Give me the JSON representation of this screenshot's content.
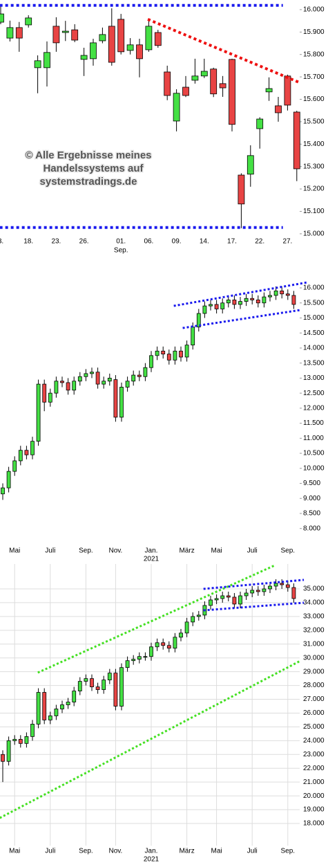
{
  "chart_data": [
    {
      "type": "candlestick",
      "categories": [
        "3.",
        null,
        null,
        "18.",
        null,
        null,
        "23.",
        null,
        null,
        "26.",
        null,
        null,
        null,
        "01.",
        null,
        null,
        "06.",
        null,
        null,
        "09.",
        null,
        null,
        "14.",
        null,
        null,
        "17.",
        null,
        null,
        "22.",
        null,
        null,
        "27.",
        null
      ],
      "year_row": [
        null,
        null,
        null,
        null,
        null,
        null,
        null,
        null,
        null,
        null,
        null,
        null,
        null,
        "Sep.",
        null,
        null,
        null,
        null,
        null,
        null,
        null,
        null,
        null,
        null,
        null,
        null,
        null,
        null,
        null,
        null,
        null,
        null,
        null
      ],
      "open": [
        15944,
        15873,
        15920,
        15932,
        15741,
        15741,
        15926,
        15898,
        15910,
        15778,
        15781,
        15861,
        15926,
        15957,
        15818,
        15843,
        15821,
        15898,
        15722,
        15503,
        15654,
        15685,
        15704,
        15735,
        15670,
        15778,
        15262,
        15266,
        15469,
        15633,
        15571,
        15704,
        15543
      ],
      "high": [
        16019,
        15951,
        15945,
        15975,
        15796,
        15858,
        15966,
        15950,
        15935,
        15830,
        15870,
        15920,
        16006,
        15981,
        15873,
        15870,
        15951,
        15910,
        15750,
        15645,
        15704,
        15781,
        15781,
        15741,
        15704,
        15781,
        15270,
        15395,
        15520,
        15698,
        15611,
        15710,
        15549
      ],
      "low": [
        15935,
        15858,
        15812,
        15920,
        15627,
        15657,
        15812,
        15860,
        15855,
        15704,
        15750,
        15850,
        15750,
        15800,
        15800,
        15698,
        15812,
        15830,
        15596,
        15457,
        15610,
        15670,
        15695,
        15610,
        15611,
        15457,
        15025,
        15210,
        15380,
        15593,
        15500,
        15550,
        15235
      ],
      "close": [
        15981,
        15920,
        15873,
        15963,
        15772,
        15809,
        15852,
        15904,
        15864,
        15796,
        15852,
        15889,
        15765,
        15812,
        15843,
        15781,
        15926,
        15840,
        15617,
        15627,
        15617,
        15704,
        15725,
        15624,
        15651,
        15488,
        15133,
        15349,
        15512,
        15648,
        15540,
        15574,
        15290
      ],
      "up_color": "#44e044",
      "down_color": "#e84444",
      "ylim": [
        14978,
        16043
      ],
      "yticks": [
        {
          "value": 15000,
          "label": "15.000"
        },
        {
          "value": 15100,
          "label": "15.100"
        },
        {
          "value": 15200,
          "label": "15.200"
        },
        {
          "value": 15300,
          "label": "15.300"
        },
        {
          "value": 15400,
          "label": "15.400"
        },
        {
          "value": 15500,
          "label": "15.500"
        },
        {
          "value": 15600,
          "label": "15.600"
        },
        {
          "value": 15700,
          "label": "15.700"
        },
        {
          "value": 15800,
          "label": "15.800"
        },
        {
          "value": 15900,
          "label": "15.900"
        },
        {
          "value": 16000,
          "label": "16.000"
        }
      ],
      "grid": false,
      "lines": [
        {
          "color": "#1a1aee",
          "x": [
            -0.1,
            30.5
          ],
          "y": [
            16019,
            16019
          ]
        },
        {
          "color": "#1a1aee",
          "x": [
            -0.1,
            30.5
          ],
          "y": [
            15028,
            15028
          ]
        },
        {
          "color": "#ee1111",
          "x": [
            15.9,
            32.4
          ],
          "y": [
            15957,
            15673
          ]
        }
      ],
      "watermark": [
        "© Alle Ergebnisse meines",
        "Handelssystems auf",
        "systemstradings.de"
      ]
    },
    {
      "type": "candlestick",
      "categories": [
        null,
        null,
        "Mai",
        null,
        null,
        null,
        null,
        null,
        "Juli",
        null,
        null,
        null,
        null,
        null,
        "Sep.",
        null,
        null,
        null,
        null,
        "Nov.",
        null,
        null,
        null,
        null,
        null,
        "Jan.",
        null,
        null,
        null,
        null,
        null,
        "März",
        null,
        null,
        null,
        null,
        "Mai",
        null,
        null,
        null,
        null,
        null,
        "Juli",
        null,
        null,
        null,
        null,
        null,
        "Sep.",
        null
      ],
      "year_row": [
        null,
        null,
        null,
        null,
        null,
        null,
        null,
        null,
        null,
        null,
        null,
        null,
        null,
        null,
        null,
        null,
        null,
        null,
        null,
        null,
        null,
        null,
        null,
        null,
        null,
        "2021",
        null,
        null,
        null,
        null,
        null,
        null,
        null,
        null,
        null,
        null,
        null,
        null,
        null,
        null,
        null,
        null,
        null,
        null,
        null,
        null,
        null,
        null,
        null,
        null
      ],
      "open": [
        9150,
        9350,
        9900,
        10250,
        10600,
        10450,
        10900,
        12800,
        12200,
        12500,
        12900,
        12850,
        12600,
        12900,
        13050,
        13150,
        13200,
        12800,
        12900,
        12950,
        11700,
        12700,
        12900,
        13100,
        13050,
        13350,
        13750,
        13900,
        13800,
        13600,
        13900,
        13700,
        14100,
        14700,
        15150,
        15400,
        15450,
        15300,
        15500,
        15600,
        15450,
        15550,
        15650,
        15600,
        15500,
        15700,
        15750,
        15900,
        15800,
        15750
      ],
      "high": [
        9500,
        10050,
        10400,
        10750,
        10750,
        11050,
        12950,
        12950,
        12650,
        13050,
        13050,
        13000,
        13050,
        13200,
        13300,
        13350,
        13350,
        13050,
        13150,
        13100,
        12850,
        13050,
        13250,
        13250,
        13500,
        13900,
        14050,
        14050,
        13950,
        14050,
        14050,
        14250,
        14850,
        15300,
        15550,
        15600,
        15600,
        15650,
        15750,
        15750,
        15700,
        15800,
        15800,
        15750,
        15850,
        15900,
        16050,
        16050,
        15950,
        15900
      ],
      "low": [
        8950,
        9200,
        9750,
        10100,
        10300,
        10300,
        10750,
        11900,
        12050,
        12350,
        12700,
        12450,
        12450,
        12750,
        12900,
        13000,
        12650,
        12650,
        12750,
        11550,
        11550,
        12550,
        12750,
        12900,
        12900,
        13200,
        13600,
        13650,
        13450,
        13450,
        13550,
        13550,
        13950,
        14550,
        15000,
        15250,
        15150,
        15150,
        15350,
        15300,
        15300,
        15400,
        15450,
        15350,
        15350,
        15550,
        15600,
        15650,
        15600,
        15300
      ],
      "close": [
        9350,
        9900,
        10250,
        10600,
        10450,
        10900,
        12800,
        12200,
        12500,
        12900,
        12850,
        12600,
        12900,
        13050,
        13150,
        13200,
        12800,
        12900,
        13000,
        11700,
        12700,
        12900,
        13100,
        13050,
        13350,
        13750,
        13900,
        13800,
        13600,
        13900,
        13700,
        14100,
        14700,
        15150,
        15400,
        15450,
        15300,
        15500,
        15600,
        15450,
        15550,
        15650,
        15600,
        15500,
        15700,
        15750,
        15900,
        15800,
        15750,
        15450
      ],
      "up_color": "#44e044",
      "down_color": "#e84444",
      "ylim": [
        7510,
        16645
      ],
      "yticks": [
        {
          "value": 8000,
          "label": "8.000"
        },
        {
          "value": 8500,
          "label": "8.500"
        },
        {
          "value": 9000,
          "label": "9.000"
        },
        {
          "value": 9500,
          "label": "9.500"
        },
        {
          "value": 10000,
          "label": "10.000"
        },
        {
          "value": 10500,
          "label": "10.500"
        },
        {
          "value": 11000,
          "label": "11.000"
        },
        {
          "value": 11500,
          "label": "11.500"
        },
        {
          "value": 12000,
          "label": "12.000"
        },
        {
          "value": 12500,
          "label": "12.500"
        },
        {
          "value": 13000,
          "label": "13.000"
        },
        {
          "value": 13500,
          "label": "13.500"
        },
        {
          "value": 14000,
          "label": "14.000"
        },
        {
          "value": 14500,
          "label": "14.500"
        },
        {
          "value": 15000,
          "label": "15.000"
        },
        {
          "value": 15500,
          "label": "15.500"
        },
        {
          "value": 16000,
          "label": "16.000"
        }
      ],
      "grid": false,
      "lines": [
        {
          "color": "#1a1aee",
          "x": [
            28.8,
            51.3
          ],
          "y": [
            15402,
            16184
          ]
        },
        {
          "color": "#1a1aee",
          "x": [
            30.3,
            50.1
          ],
          "y": [
            14666,
            15264
          ]
        }
      ]
    },
    {
      "type": "candlestick",
      "categories": [
        null,
        null,
        "Mai",
        null,
        null,
        null,
        null,
        null,
        "Juli",
        null,
        null,
        null,
        null,
        null,
        "Sep.",
        null,
        null,
        null,
        null,
        "Nov.",
        null,
        null,
        null,
        null,
        null,
        "Jan.",
        null,
        null,
        null,
        null,
        null,
        "März",
        null,
        null,
        null,
        null,
        "Mai",
        null,
        null,
        null,
        null,
        null,
        "Juli",
        null,
        null,
        null,
        null,
        null,
        "Sep.",
        null
      ],
      "year_row": [
        null,
        null,
        null,
        null,
        null,
        null,
        null,
        null,
        null,
        null,
        null,
        null,
        null,
        null,
        null,
        null,
        null,
        null,
        null,
        null,
        null,
        null,
        null,
        null,
        null,
        "2021",
        null,
        null,
        null,
        null,
        null,
        null,
        null,
        null,
        null,
        null,
        null,
        null,
        null,
        null,
        null,
        null,
        null,
        null,
        null,
        null,
        null,
        null,
        null,
        null
      ],
      "open": [
        23000,
        22500,
        24000,
        24100,
        23800,
        24300,
        25200,
        27500,
        25500,
        25800,
        26300,
        26600,
        26800,
        27600,
        28300,
        28500,
        27900,
        27700,
        28400,
        28900,
        26500,
        29300,
        29800,
        29900,
        30100,
        30100,
        30800,
        31100,
        30900,
        30700,
        31500,
        31800,
        32600,
        33000,
        33100,
        33800,
        34200,
        34300,
        34500,
        34400,
        33900,
        34500,
        34700,
        34900,
        34800,
        35000,
        35200,
        35400,
        35300,
        35100
      ],
      "high": [
        23300,
        24300,
        24400,
        24400,
        24600,
        25500,
        27800,
        27800,
        26100,
        26600,
        26900,
        27100,
        27900,
        28600,
        28800,
        28800,
        28200,
        28700,
        29200,
        29200,
        29600,
        30100,
        30200,
        30400,
        30400,
        31100,
        31400,
        31400,
        31200,
        31800,
        32100,
        32900,
        33300,
        33400,
        34100,
        34500,
        34600,
        34800,
        34800,
        34700,
        34800,
        35000,
        35200,
        35200,
        35300,
        35500,
        35700,
        35700,
        35600,
        35400
      ],
      "low": [
        21000,
        22200,
        23700,
        23500,
        23500,
        24000,
        24900,
        25200,
        25200,
        25500,
        26000,
        26300,
        26500,
        27300,
        28000,
        27600,
        27400,
        27400,
        28100,
        26200,
        26200,
        29000,
        29500,
        29600,
        29800,
        29800,
        30500,
        30600,
        30400,
        30400,
        31200,
        31500,
        32300,
        32700,
        32800,
        33500,
        33900,
        34000,
        34100,
        33600,
        33600,
        34200,
        34400,
        34500,
        34500,
        34700,
        34900,
        35000,
        34800,
        34000
      ],
      "close": [
        22500,
        24000,
        24100,
        23800,
        24300,
        25200,
        27500,
        25500,
        25800,
        26300,
        26600,
        26800,
        27600,
        28300,
        28500,
        27900,
        27700,
        28400,
        28900,
        26500,
        29300,
        29800,
        29900,
        30100,
        30100,
        30800,
        31100,
        30900,
        30700,
        31500,
        31800,
        32600,
        33000,
        33100,
        33800,
        34200,
        34300,
        34500,
        34400,
        33900,
        34500,
        34700,
        34900,
        34800,
        35000,
        35200,
        35400,
        35300,
        35100,
        34300
      ],
      "up_color": "#44e044",
      "down_color": "#e84444",
      "ylim": [
        16395,
        36805
      ],
      "yticks": [
        {
          "value": 18000,
          "label": "18.000"
        },
        {
          "value": 19000,
          "label": "19.000"
        },
        {
          "value": 20000,
          "label": "20.000"
        },
        {
          "value": 21000,
          "label": "21.000"
        },
        {
          "value": 22000,
          "label": "22.000"
        },
        {
          "value": 23000,
          "label": "23.000"
        },
        {
          "value": 24000,
          "label": "24.000"
        },
        {
          "value": 25000,
          "label": "25.000"
        },
        {
          "value": 26000,
          "label": "26.000"
        },
        {
          "value": 27000,
          "label": "27.000"
        },
        {
          "value": 28000,
          "label": "28.000"
        },
        {
          "value": 29000,
          "label": "29.000"
        },
        {
          "value": 30000,
          "label": "30.000"
        },
        {
          "value": 31000,
          "label": "31.000"
        },
        {
          "value": 32000,
          "label": "32.000"
        },
        {
          "value": 33000,
          "label": "33.000"
        },
        {
          "value": 34000,
          "label": "34.000"
        },
        {
          "value": 35000,
          "label": "35.000"
        }
      ],
      "grid": true,
      "lines": [
        {
          "color": "#44e022",
          "x": [
            5.9,
            45.8
          ],
          "y": [
            28932,
            36705
          ]
        },
        {
          "color": "#44e022",
          "x": [
            -0.5,
            50.1
          ],
          "y": [
            18400,
            29784
          ]
        },
        {
          "color": "#1a1aee",
          "x": [
            33.8,
            50.7
          ],
          "y": [
            35000,
            35652
          ]
        },
        {
          "color": "#1a1aee",
          "x": [
            33.8,
            50.7
          ],
          "y": [
            33445,
            33997
          ]
        }
      ]
    }
  ]
}
